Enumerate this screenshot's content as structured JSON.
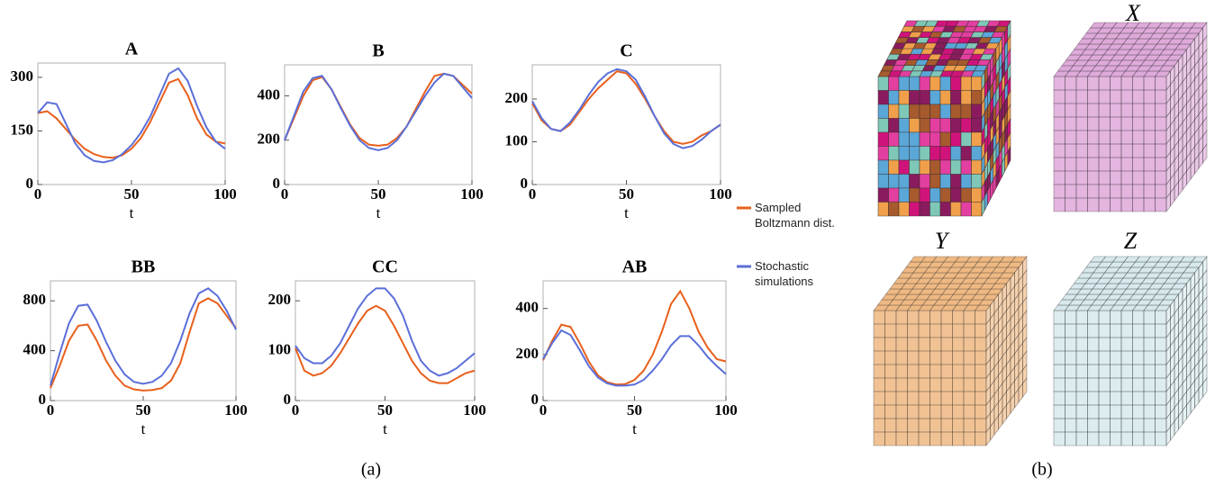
{
  "chart_data": [
    {
      "type": "line",
      "title": "A",
      "xlabel": "t",
      "x": [
        0,
        5,
        10,
        15,
        20,
        25,
        30,
        35,
        40,
        45,
        50,
        55,
        60,
        65,
        70,
        75,
        80,
        85,
        90,
        95,
        100
      ],
      "xlim": [
        0,
        100
      ],
      "xticks": [
        0,
        50,
        100
      ],
      "ylim": [
        0,
        340
      ],
      "yticks": [
        0,
        150,
        300
      ],
      "series": [
        {
          "name": "Sampled Boltzmann dist.",
          "color": "#e8601c",
          "values": [
            200,
            205,
            185,
            155,
            125,
            100,
            85,
            77,
            75,
            82,
            100,
            130,
            175,
            230,
            285,
            295,
            250,
            185,
            140,
            120,
            115
          ]
        },
        {
          "name": "Stochastic simulations",
          "color": "#5b6fd8",
          "values": [
            200,
            230,
            225,
            170,
            115,
            82,
            66,
            62,
            68,
            85,
            110,
            145,
            190,
            250,
            310,
            325,
            290,
            220,
            160,
            120,
            100
          ]
        }
      ]
    },
    {
      "type": "line",
      "title": "B",
      "xlabel": "t",
      "x": [
        0,
        5,
        10,
        15,
        20,
        25,
        30,
        35,
        40,
        45,
        50,
        55,
        60,
        65,
        70,
        75,
        80,
        85,
        90,
        95,
        100
      ],
      "xlim": [
        0,
        100
      ],
      "xticks": [
        0,
        50,
        100
      ],
      "ylim": [
        0,
        540
      ],
      "yticks": [
        0,
        200,
        400
      ],
      "series": [
        {
          "color": "#e8601c",
          "values": [
            200,
            300,
            400,
            470,
            485,
            430,
            350,
            270,
            210,
            180,
            175,
            180,
            210,
            260,
            340,
            420,
            490,
            500,
            490,
            450,
            410
          ]
        },
        {
          "color": "#5b6fd8",
          "values": [
            200,
            310,
            420,
            480,
            490,
            430,
            345,
            265,
            200,
            165,
            155,
            165,
            200,
            260,
            330,
            400,
            460,
            500,
            490,
            440,
            390
          ]
        }
      ]
    },
    {
      "type": "line",
      "title": "C",
      "xlabel": "t",
      "x": [
        0,
        5,
        10,
        15,
        20,
        25,
        30,
        35,
        40,
        45,
        50,
        55,
        60,
        65,
        70,
        75,
        80,
        85,
        90,
        95,
        100
      ],
      "xlim": [
        0,
        100
      ],
      "xticks": [
        0,
        50,
        100
      ],
      "ylim": [
        0,
        280
      ],
      "yticks": [
        0,
        100,
        200
      ],
      "series": [
        {
          "color": "#e8601c",
          "values": [
            190,
            150,
            130,
            125,
            140,
            170,
            200,
            225,
            245,
            265,
            260,
            235,
            200,
            160,
            125,
            100,
            95,
            100,
            115,
            125,
            140
          ]
        },
        {
          "color": "#5b6fd8",
          "values": [
            195,
            155,
            130,
            125,
            145,
            175,
            210,
            240,
            260,
            270,
            265,
            245,
            205,
            160,
            120,
            95,
            85,
            90,
            105,
            125,
            140
          ]
        }
      ]
    },
    {
      "type": "line",
      "title": "BB",
      "xlabel": "t",
      "x": [
        0,
        5,
        10,
        15,
        20,
        25,
        30,
        35,
        40,
        45,
        50,
        55,
        60,
        65,
        70,
        75,
        80,
        85,
        90,
        95,
        100
      ],
      "xlim": [
        0,
        100
      ],
      "xticks": [
        0,
        50,
        100
      ],
      "ylim": [
        0,
        960
      ],
      "yticks": [
        0,
        400,
        800
      ],
      "series": [
        {
          "color": "#e8601c",
          "values": [
            100,
            280,
            480,
            600,
            610,
            480,
            320,
            200,
            120,
            90,
            80,
            85,
            100,
            160,
            300,
            550,
            780,
            820,
            780,
            680,
            580
          ]
        },
        {
          "color": "#5b6fd8",
          "values": [
            120,
            380,
            620,
            760,
            770,
            640,
            470,
            320,
            210,
            150,
            135,
            150,
            200,
            300,
            480,
            700,
            860,
            900,
            840,
            720,
            570
          ]
        }
      ]
    },
    {
      "type": "line",
      "title": "CC",
      "xlabel": "t",
      "x": [
        0,
        5,
        10,
        15,
        20,
        25,
        30,
        35,
        40,
        45,
        50,
        55,
        60,
        65,
        70,
        75,
        80,
        85,
        90,
        95,
        100
      ],
      "xlim": [
        0,
        100
      ],
      "xticks": [
        0,
        50,
        100
      ],
      "ylim": [
        0,
        240
      ],
      "yticks": [
        0,
        100,
        200
      ],
      "series": [
        {
          "color": "#e8601c",
          "values": [
            105,
            60,
            50,
            55,
            70,
            95,
            125,
            155,
            180,
            190,
            180,
            150,
            115,
            80,
            55,
            40,
            35,
            35,
            45,
            55,
            60
          ]
        },
        {
          "color": "#5b6fd8",
          "values": [
            110,
            85,
            75,
            75,
            90,
            115,
            150,
            185,
            210,
            225,
            225,
            205,
            170,
            120,
            80,
            60,
            50,
            55,
            65,
            80,
            95
          ]
        }
      ]
    },
    {
      "type": "line",
      "title": "AB",
      "xlabel": "t",
      "x": [
        0,
        5,
        10,
        15,
        20,
        25,
        30,
        35,
        40,
        45,
        50,
        55,
        60,
        65,
        70,
        75,
        80,
        85,
        90,
        95,
        100
      ],
      "xlim": [
        0,
        100
      ],
      "xticks": [
        0,
        50,
        100
      ],
      "ylim": [
        0,
        520
      ],
      "yticks": [
        0,
        200,
        400
      ],
      "series": [
        {
          "color": "#e8601c",
          "values": [
            175,
            260,
            330,
            320,
            250,
            170,
            110,
            80,
            70,
            72,
            90,
            130,
            200,
            300,
            420,
            475,
            400,
            300,
            230,
            180,
            170
          ]
        },
        {
          "color": "#5b6fd8",
          "values": [
            180,
            250,
            305,
            285,
            220,
            150,
            100,
            75,
            65,
            65,
            70,
            90,
            130,
            180,
            240,
            280,
            280,
            240,
            190,
            150,
            115
          ]
        }
      ]
    }
  ],
  "figure": {
    "panel_labels": [
      "(a)",
      "(b)"
    ],
    "cube_labels": [
      "X",
      "Y",
      "Z"
    ]
  }
}
